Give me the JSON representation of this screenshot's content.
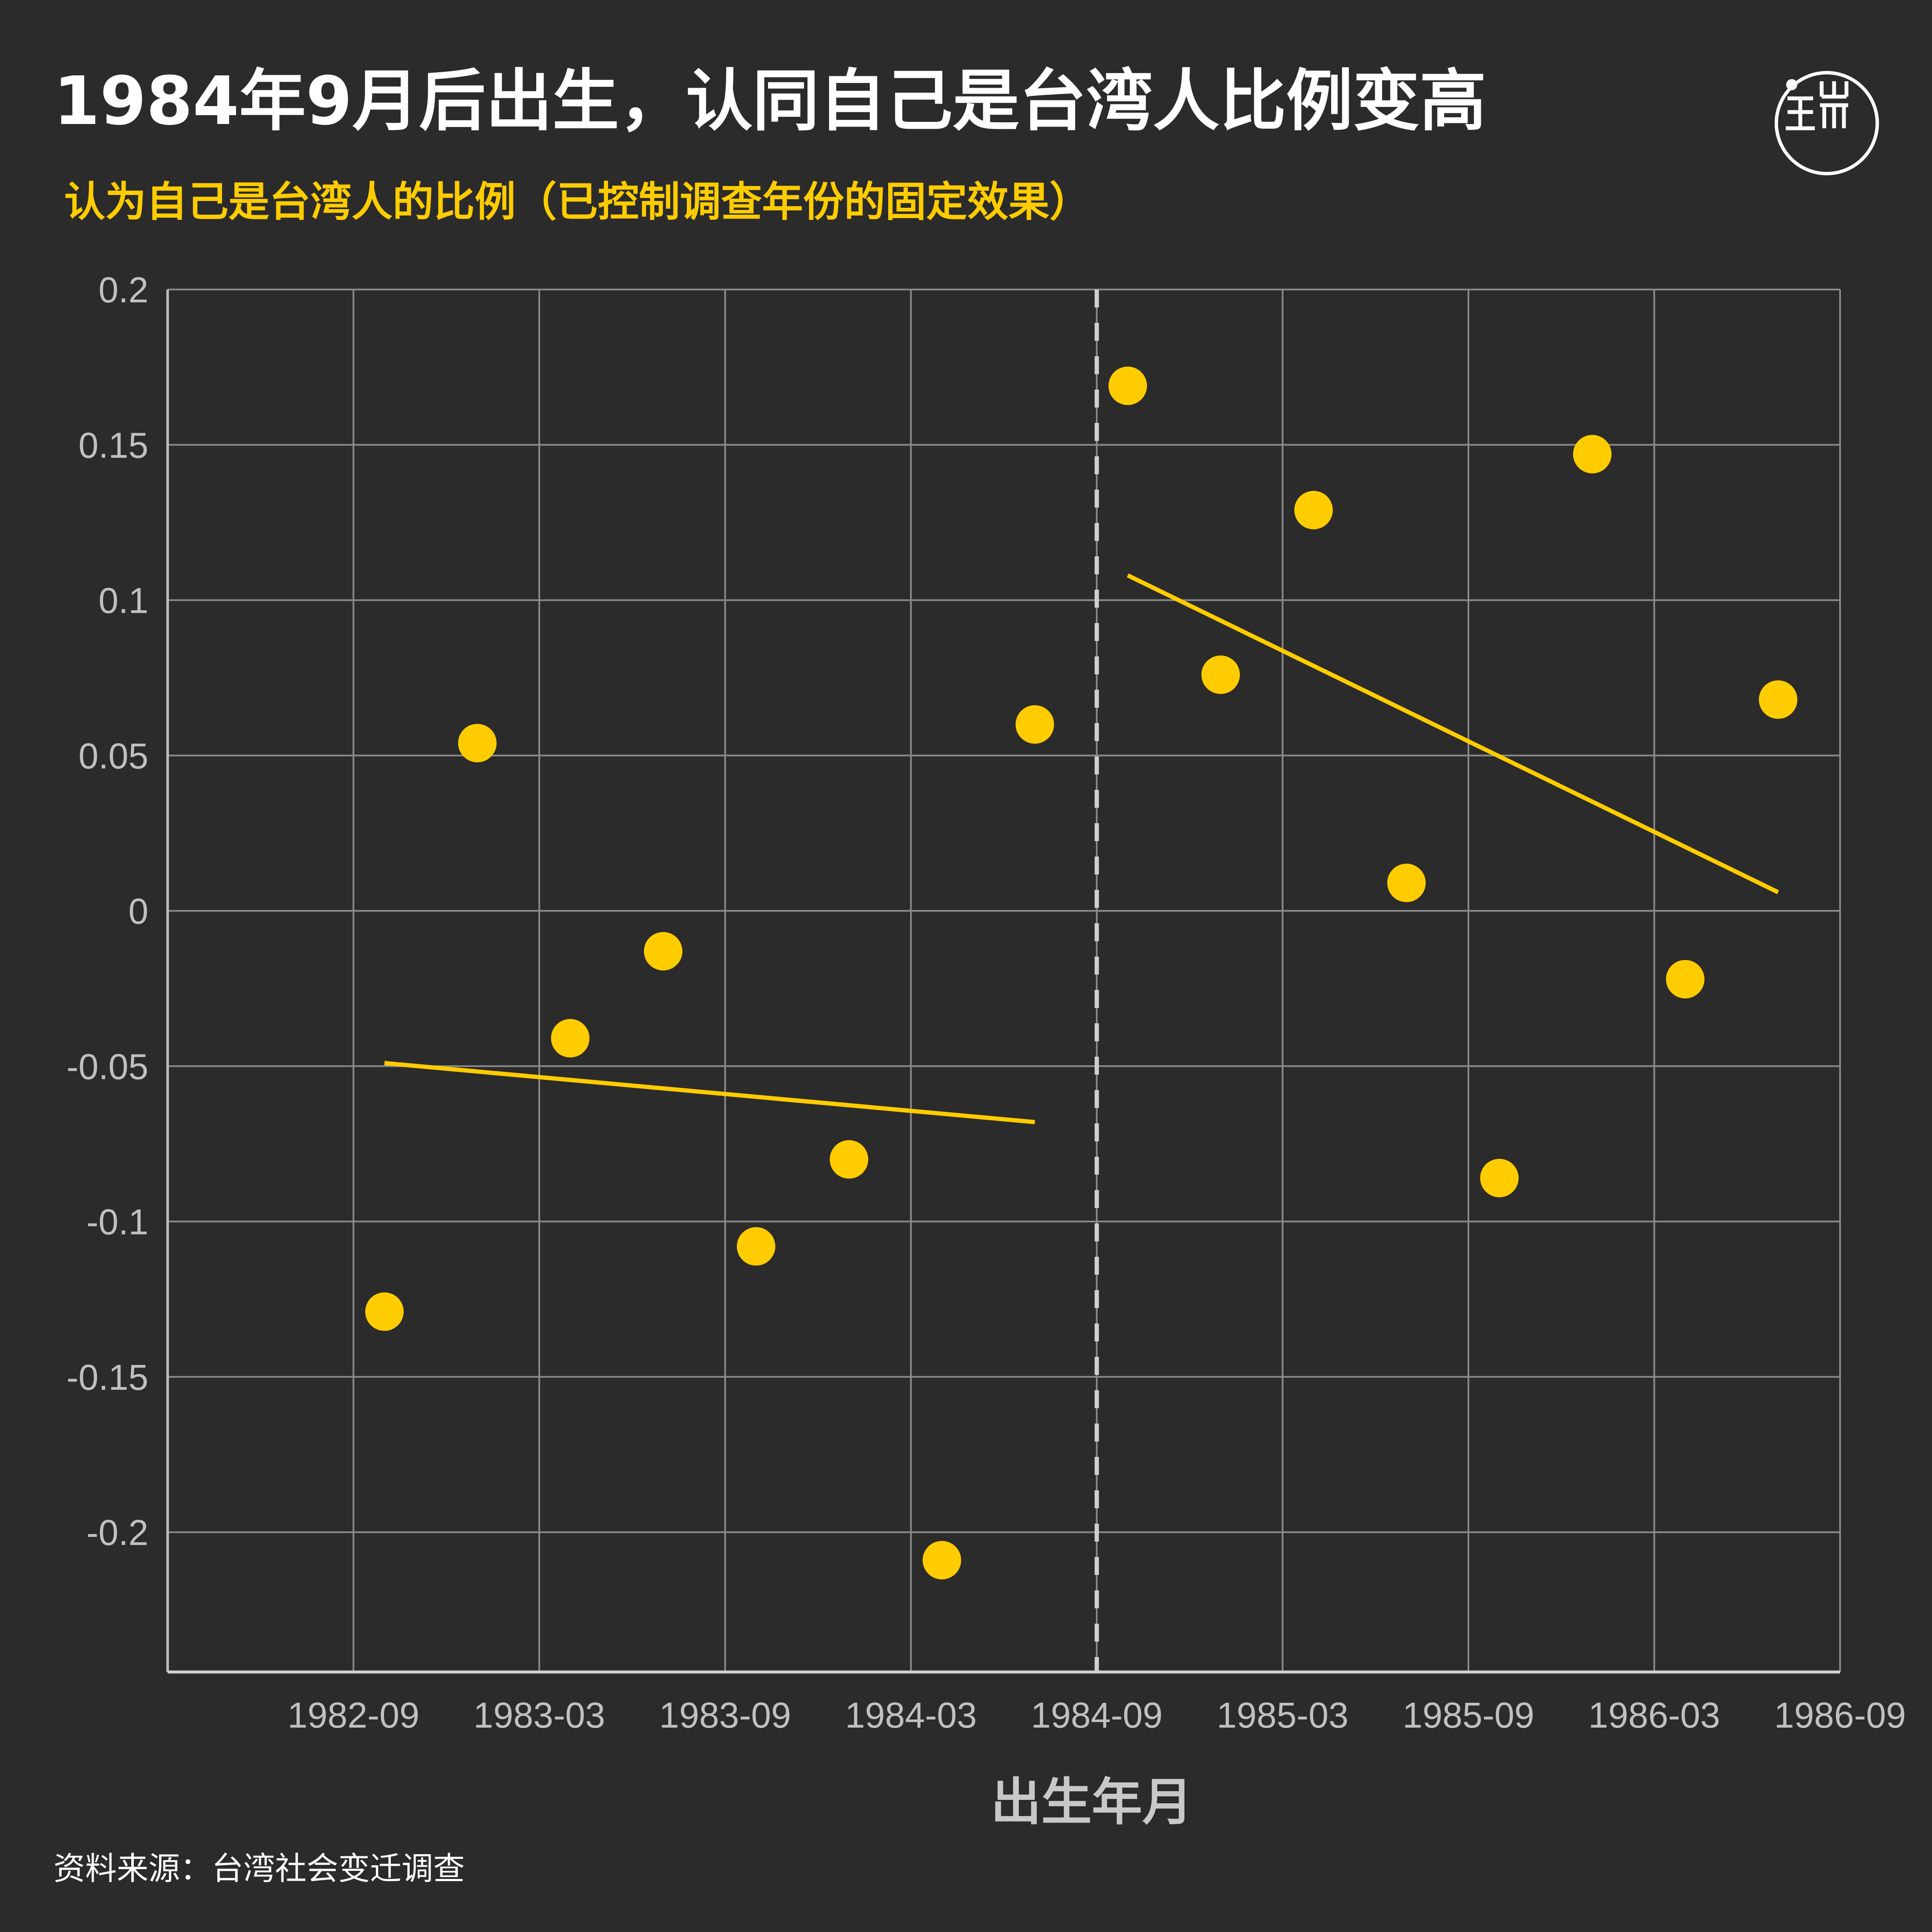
{
  "title": "1984年9月后出生，认同自己是台湾人比例变高",
  "subtitle": "认为自己是台湾人的比例（已控制调查年份的固定效果）",
  "source": "资料来源：台湾社会变迁调查",
  "logo_icon": "端 circle logo",
  "colors": {
    "background": "#2b2b2b",
    "accent": "#ffcc00",
    "text": "#ffffff",
    "axis_text": "#c0c0c0",
    "grid": "#8a8a8a",
    "cutoff_line": "#cfcfcf"
  },
  "chart_data": {
    "type": "scatter",
    "title": "1984年9月后出生，认同自己是台湾人比例变高",
    "subtitle": "认为自己是台湾人的比例（已控制调查年份的固定效果）",
    "xlabel": "出生年月",
    "ylabel": "",
    "xlim": [
      "1982-03",
      "1986-09"
    ],
    "ylim": [
      -0.245,
      0.2
    ],
    "x_ticks": [
      "1982-09",
      "1983-03",
      "1983-09",
      "1984-03",
      "1984-09",
      "1985-03",
      "1985-09",
      "1986-03",
      "1986-09"
    ],
    "y_ticks": [
      0.2,
      0.15,
      0.1,
      0.05,
      0,
      -0.05,
      -0.1,
      -0.15,
      -0.2
    ],
    "y_tick_labels": [
      "0.2",
      "0.15",
      "0.1",
      "0.05",
      "0",
      "-0.05",
      "-0.1",
      "-0.15",
      "-0.2"
    ],
    "grid": true,
    "legend": "none",
    "points": [
      {
        "x": "1982-10",
        "y": -0.129
      },
      {
        "x": "1983-01",
        "y": 0.054
      },
      {
        "x": "1983-04",
        "y": -0.041
      },
      {
        "x": "1983-07",
        "y": -0.013
      },
      {
        "x": "1983-10",
        "y": -0.108
      },
      {
        "x": "1984-01",
        "y": -0.08
      },
      {
        "x": "1984-04",
        "y": -0.209
      },
      {
        "x": "1984-07",
        "y": 0.06
      },
      {
        "x": "1984-10",
        "y": 0.169
      },
      {
        "x": "1985-01",
        "y": 0.076
      },
      {
        "x": "1985-04",
        "y": 0.129
      },
      {
        "x": "1985-07",
        "y": 0.009
      },
      {
        "x": "1985-10",
        "y": -0.086
      },
      {
        "x": "1986-01",
        "y": 0.147
      },
      {
        "x": "1986-04",
        "y": -0.022
      },
      {
        "x": "1986-07",
        "y": 0.068
      }
    ],
    "fit_lines": [
      {
        "x": [
          "1982-10",
          "1984-07"
        ],
        "y": [
          -0.049,
          -0.068
        ]
      },
      {
        "x": [
          "1984-10",
          "1986-07"
        ],
        "y": [
          0.108,
          0.006
        ]
      }
    ],
    "cutoff": "1984-09"
  }
}
